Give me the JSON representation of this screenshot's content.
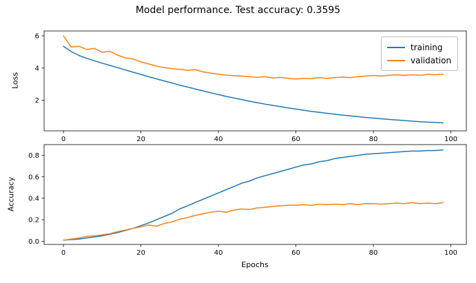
{
  "title": "Model performance. Test accuracy: 0.3595",
  "colors": {
    "training": "#1f77b4",
    "validation": "#ff7f0e"
  },
  "chart_data": [
    {
      "type": "line",
      "name": "loss",
      "ylabel": "Loss",
      "xlabel": "",
      "xlim": [
        -5,
        104
      ],
      "ylim": [
        0.1,
        6.3
      ],
      "xticks": [
        0,
        20,
        40,
        60,
        80,
        100
      ],
      "xtick_labels": [
        "0",
        "20",
        "40",
        "60",
        "80",
        "100"
      ],
      "yticks": [
        2,
        4,
        6
      ],
      "ytick_labels": [
        "2",
        "4",
        "6"
      ],
      "grid": false,
      "legend_position": "upper right",
      "x": [
        0,
        2,
        4,
        6,
        8,
        10,
        12,
        14,
        16,
        18,
        20,
        22,
        24,
        26,
        28,
        30,
        32,
        34,
        36,
        38,
        40,
        42,
        44,
        46,
        48,
        50,
        52,
        54,
        56,
        58,
        60,
        62,
        64,
        66,
        68,
        70,
        72,
        74,
        76,
        78,
        80,
        82,
        84,
        86,
        88,
        90,
        92,
        94,
        96,
        98
      ],
      "series": [
        {
          "name": "training",
          "values": [
            5.35,
            5.02,
            4.78,
            4.6,
            4.45,
            4.3,
            4.16,
            4.02,
            3.88,
            3.74,
            3.6,
            3.46,
            3.33,
            3.2,
            3.07,
            2.94,
            2.82,
            2.7,
            2.58,
            2.46,
            2.35,
            2.24,
            2.14,
            2.04,
            1.94,
            1.85,
            1.76,
            1.68,
            1.6,
            1.52,
            1.45,
            1.38,
            1.31,
            1.25,
            1.19,
            1.13,
            1.08,
            1.03,
            0.98,
            0.93,
            0.89,
            0.85,
            0.81,
            0.77,
            0.74,
            0.7,
            0.67,
            0.64,
            0.62,
            0.59
          ]
        },
        {
          "name": "validation",
          "values": [
            6.0,
            5.3,
            5.35,
            5.15,
            5.22,
            4.98,
            5.04,
            4.8,
            4.62,
            4.56,
            4.38,
            4.25,
            4.12,
            4.02,
            3.96,
            3.92,
            3.86,
            3.9,
            3.76,
            3.68,
            3.62,
            3.56,
            3.52,
            3.5,
            3.46,
            3.42,
            3.46,
            3.38,
            3.42,
            3.36,
            3.32,
            3.36,
            3.34,
            3.4,
            3.36,
            3.4,
            3.44,
            3.4,
            3.46,
            3.5,
            3.54,
            3.5,
            3.55,
            3.58,
            3.54,
            3.58,
            3.55,
            3.6,
            3.58,
            3.62
          ]
        }
      ]
    },
    {
      "type": "line",
      "name": "accuracy",
      "ylabel": "Accuracy",
      "xlabel": "Epochs",
      "xlim": [
        -5,
        104
      ],
      "ylim": [
        -0.03,
        0.9
      ],
      "xticks": [
        0,
        20,
        40,
        60,
        80,
        100
      ],
      "xtick_labels": [
        "0",
        "20",
        "40",
        "60",
        "80",
        "100"
      ],
      "yticks": [
        0.0,
        0.2,
        0.4,
        0.6,
        0.8
      ],
      "ytick_labels": [
        "0.0",
        "0.2",
        "0.4",
        "0.6",
        "0.8"
      ],
      "grid": false,
      "legend_position": "none",
      "x": [
        0,
        2,
        4,
        6,
        8,
        10,
        12,
        14,
        16,
        18,
        20,
        22,
        24,
        26,
        28,
        30,
        32,
        34,
        36,
        38,
        40,
        42,
        44,
        46,
        48,
        50,
        52,
        54,
        56,
        58,
        60,
        62,
        64,
        66,
        68,
        70,
        72,
        74,
        76,
        78,
        80,
        82,
        84,
        86,
        88,
        90,
        92,
        94,
        96,
        98
      ],
      "series": [
        {
          "name": "training",
          "values": [
            0.01,
            0.015,
            0.02,
            0.03,
            0.04,
            0.05,
            0.065,
            0.08,
            0.1,
            0.12,
            0.145,
            0.17,
            0.2,
            0.23,
            0.26,
            0.3,
            0.33,
            0.36,
            0.39,
            0.42,
            0.45,
            0.48,
            0.51,
            0.54,
            0.56,
            0.59,
            0.61,
            0.63,
            0.65,
            0.67,
            0.69,
            0.71,
            0.72,
            0.74,
            0.75,
            0.77,
            0.78,
            0.79,
            0.8,
            0.81,
            0.815,
            0.82,
            0.825,
            0.83,
            0.835,
            0.84,
            0.84,
            0.845,
            0.845,
            0.85
          ]
        },
        {
          "name": "validation",
          "values": [
            0.01,
            0.02,
            0.03,
            0.045,
            0.05,
            0.06,
            0.07,
            0.09,
            0.105,
            0.12,
            0.135,
            0.15,
            0.14,
            0.165,
            0.18,
            0.205,
            0.22,
            0.24,
            0.255,
            0.27,
            0.28,
            0.27,
            0.29,
            0.3,
            0.295,
            0.31,
            0.315,
            0.325,
            0.33,
            0.335,
            0.335,
            0.34,
            0.335,
            0.345,
            0.34,
            0.345,
            0.34,
            0.35,
            0.34,
            0.35,
            0.35,
            0.345,
            0.35,
            0.355,
            0.35,
            0.36,
            0.35,
            0.355,
            0.35,
            0.36
          ]
        }
      ]
    }
  ]
}
